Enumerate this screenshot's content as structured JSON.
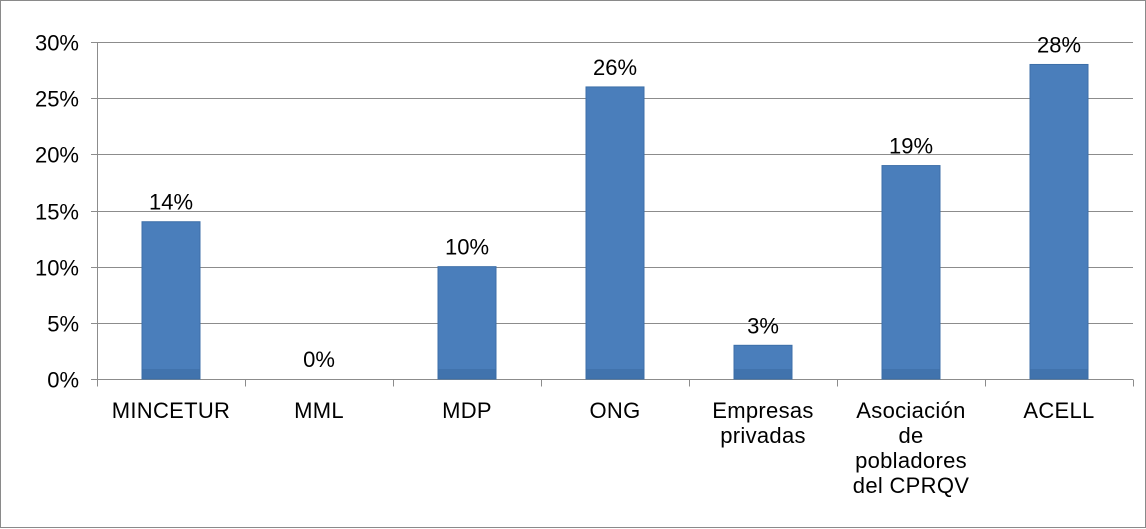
{
  "chart_data": {
    "type": "bar",
    "categories": [
      [
        "MINCETUR"
      ],
      [
        "MML"
      ],
      [
        "MDP"
      ],
      [
        "ONG"
      ],
      [
        "Empresas",
        "privadas"
      ],
      [
        "Asociación",
        "de",
        "pobladores",
        "del CPRQV"
      ],
      [
        "ACELL"
      ]
    ],
    "values": [
      14,
      0,
      10,
      26,
      3,
      19,
      28
    ],
    "data_labels": [
      "14%",
      "0%",
      "10%",
      "26%",
      "3%",
      "19%",
      "28%"
    ],
    "y_ticks": [
      {
        "value": 0,
        "label": "0%"
      },
      {
        "value": 5,
        "label": "5%"
      },
      {
        "value": 10,
        "label": "10%"
      },
      {
        "value": 15,
        "label": "15%"
      },
      {
        "value": 20,
        "label": "20%"
      },
      {
        "value": 25,
        "label": "25%"
      },
      {
        "value": 30,
        "label": "30%"
      }
    ],
    "ylim": [
      0,
      30
    ],
    "title": "",
    "xlabel": "",
    "ylabel": "",
    "grid": true,
    "legend": "none",
    "colors": {
      "bar": "#4a7ebb",
      "bar_edge": "#3d6fa8",
      "bar_base": "#3b6aa3",
      "grid": "#8c8c8c",
      "axis": "#8c8c8c"
    }
  }
}
